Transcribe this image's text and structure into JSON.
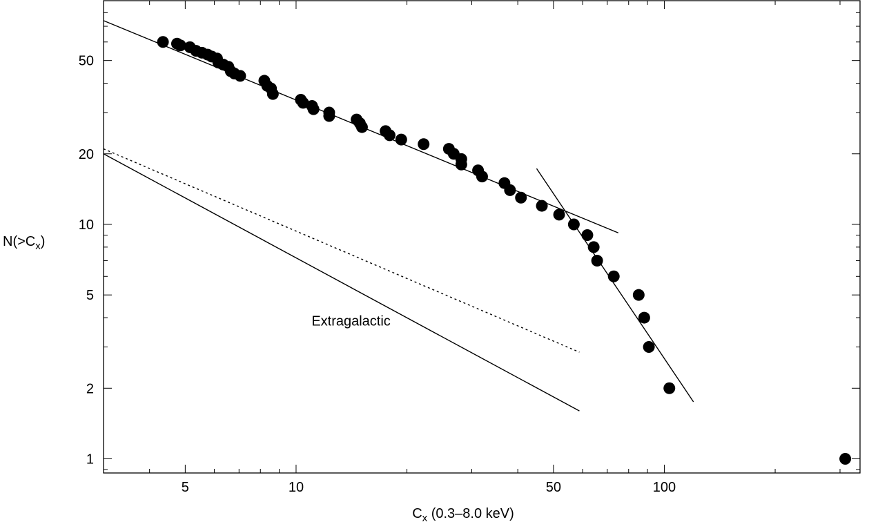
{
  "chart_data": {
    "type": "scatter",
    "title": "",
    "xlabel": {
      "main": "C",
      "sub": "x",
      "rest": " (0.3–8.0 keV)"
    },
    "ylabel": {
      "main": "N(>C",
      "sub": "x",
      "rest": ")"
    },
    "xscale": "log",
    "yscale": "log",
    "xlim": [
      3.0,
      340.0
    ],
    "ylim": [
      0.87,
      90.0
    ],
    "grid": false,
    "xticks": [
      {
        "value": 5,
        "label": "5"
      },
      {
        "value": 10,
        "label": "10"
      },
      {
        "value": 50,
        "label": "50"
      },
      {
        "value": 100,
        "label": "100"
      }
    ],
    "yticks": [
      {
        "value": 1,
        "label": "1"
      },
      {
        "value": 2,
        "label": "2"
      },
      {
        "value": 5,
        "label": "5"
      },
      {
        "value": 10,
        "label": "10"
      },
      {
        "value": 20,
        "label": "20"
      },
      {
        "value": 50,
        "label": "50"
      }
    ],
    "points": [
      [
        4.35,
        60
      ],
      [
        4.75,
        59
      ],
      [
        4.85,
        58
      ],
      [
        5.15,
        57
      ],
      [
        5.35,
        55
      ],
      [
        5.55,
        54
      ],
      [
        5.75,
        53
      ],
      [
        5.9,
        52
      ],
      [
        6.1,
        51
      ],
      [
        6.15,
        49
      ],
      [
        6.35,
        48
      ],
      [
        6.55,
        47
      ],
      [
        6.65,
        45
      ],
      [
        6.8,
        44
      ],
      [
        7.05,
        43
      ],
      [
        8.2,
        41
      ],
      [
        8.35,
        39
      ],
      [
        8.55,
        38
      ],
      [
        8.65,
        36
      ],
      [
        10.3,
        34
      ],
      [
        10.45,
        33
      ],
      [
        11.05,
        32
      ],
      [
        11.15,
        31
      ],
      [
        12.3,
        30
      ],
      [
        12.3,
        29
      ],
      [
        14.6,
        28
      ],
      [
        14.9,
        27
      ],
      [
        15.1,
        26
      ],
      [
        17.5,
        25
      ],
      [
        17.95,
        24
      ],
      [
        19.3,
        23
      ],
      [
        22.2,
        22
      ],
      [
        26.0,
        21
      ],
      [
        26.8,
        20
      ],
      [
        28.1,
        19
      ],
      [
        28.1,
        18
      ],
      [
        31.2,
        17
      ],
      [
        32.0,
        16
      ],
      [
        36.8,
        15
      ],
      [
        38.1,
        14
      ],
      [
        40.8,
        13
      ],
      [
        46.5,
        12
      ],
      [
        51.8,
        11
      ],
      [
        56.8,
        10
      ],
      [
        61.8,
        9
      ],
      [
        64.3,
        8
      ],
      [
        65.7,
        7
      ],
      [
        72.9,
        6
      ],
      [
        85.2,
        5
      ],
      [
        88.2,
        4
      ],
      [
        90.8,
        3
      ],
      [
        103.2,
        2
      ],
      [
        310.0,
        1
      ]
    ],
    "lines": [
      {
        "name": "",
        "style": "solid",
        "x": [
          3.0,
          75.0
        ],
        "y": [
          74.0,
          9.2
        ]
      },
      {
        "name": "",
        "style": "solid",
        "x": [
          45.0,
          120.0
        ],
        "y": [
          17.3,
          1.75
        ]
      },
      {
        "name": "",
        "style": "solid",
        "x": [
          3.0,
          58.8
        ],
        "y": [
          20.0,
          1.6
        ]
      },
      {
        "name": "",
        "style": "dotted",
        "x": [
          3.0,
          58.8
        ],
        "y": [
          21.0,
          2.85
        ]
      }
    ],
    "annotations": [
      {
        "text": "Extragalactic",
        "x": 14.1,
        "y": 3.7
      }
    ]
  }
}
